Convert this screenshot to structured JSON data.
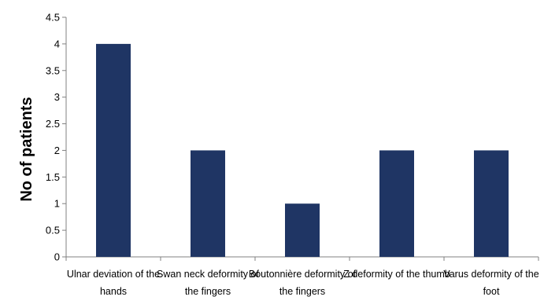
{
  "chart_data": {
    "type": "bar",
    "title": "",
    "xlabel": "",
    "ylabel": "No of patients",
    "ylim": [
      0,
      4.5
    ],
    "yticks": [
      "0",
      "0.5",
      "1",
      "1.5",
      "2",
      "2.5",
      "3",
      "3.5",
      "4",
      "4.5"
    ],
    "grid": false,
    "legend": "none",
    "bar_color": "#1F3564",
    "categories": [
      [
        "Ulnar deviation of the",
        "hands"
      ],
      [
        "Swan neck deformity of",
        "the fingers"
      ],
      [
        "Boutonnière deformity of",
        "the fingers"
      ],
      [
        "Z deformity of the thumb"
      ],
      [
        "Varus deformity of the",
        "foot"
      ]
    ],
    "values": [
      4,
      2,
      1,
      2,
      2
    ]
  }
}
